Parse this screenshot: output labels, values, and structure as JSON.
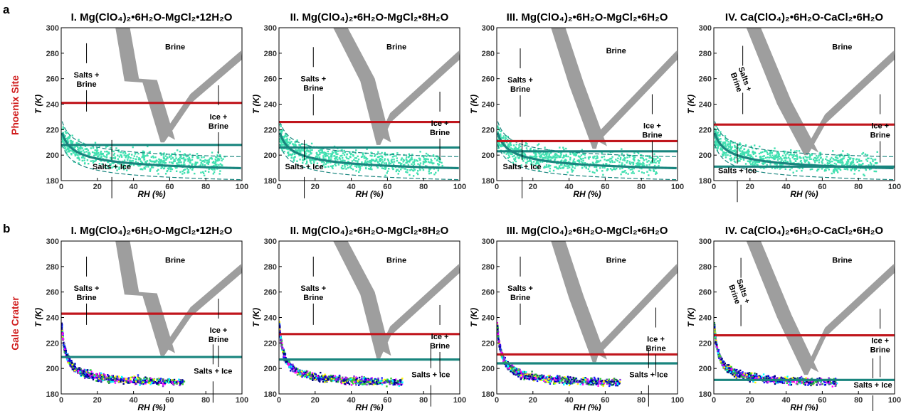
{
  "panel_labels": [
    "a",
    "b"
  ],
  "row_labels": [
    "Phoenix Site",
    "Gale Crater"
  ],
  "colors": {
    "brine_fill": "#9e9e9e",
    "red_line": "#c0161d",
    "teal_line": "#19857e",
    "mint_points": "#40e0b0",
    "row_label": "#d01c1c"
  },
  "chart_data": [
    {
      "type": "line",
      "row": "a",
      "site": "Phoenix Site",
      "title": "I. Mg(ClO₄)₂•6H₂O-MgCl₂•12H₂O",
      "xlabel": "RH (%)",
      "ylabel": "T (K)",
      "xlim": [
        0,
        100
      ],
      "ylim": [
        180,
        300
      ],
      "xticks": [
        "0",
        "20",
        "40",
        "60",
        "80",
        "100"
      ],
      "yticks": [
        "180",
        "200",
        "220",
        "240",
        "260",
        "280",
        "300"
      ],
      "eutonic_rh": 55,
      "eutonic_t": 210,
      "deliq_left": [
        [
          30,
          300
        ],
        [
          35,
          258
        ],
        [
          45,
          257
        ],
        [
          55,
          210
        ]
      ],
      "deliq_right": [
        [
          57,
          210
        ],
        [
          72,
          241
        ],
        [
          100,
          275
        ]
      ],
      "red_line_T": 241,
      "teal_line_T": 208,
      "labels": [
        {
          "text": "Brine",
          "x": 63,
          "y": 283
        },
        {
          "text": "Salts +\nBrine",
          "x": 14,
          "y": 261
        },
        {
          "text": "Ice +\nBrine",
          "x": 87,
          "y": 228
        },
        {
          "text": "Salts + Ice",
          "x": 28,
          "y": 189
        }
      ]
    },
    {
      "type": "line",
      "row": "a",
      "site": "Phoenix Site",
      "title": "II. Mg(ClO₄)₂•6H₂O-MgCl₂•8H₂O",
      "xlabel": "RH (%)",
      "ylabel": "T (K)",
      "xlim": [
        0,
        100
      ],
      "ylim": [
        180,
        300
      ],
      "xticks": [
        "0",
        "20",
        "40",
        "60",
        "80",
        "100"
      ],
      "yticks": [
        "180",
        "200",
        "220",
        "240",
        "260",
        "280",
        "300"
      ],
      "eutonic_rh": 54,
      "eutonic_t": 208,
      "deliq_left": [
        [
          30,
          300
        ],
        [
          45,
          258
        ],
        [
          54,
          208
        ]
      ],
      "deliq_right": [
        [
          56,
          208
        ],
        [
          62,
          226
        ],
        [
          100,
          275
        ]
      ],
      "red_line_T": 226,
      "teal_line_T": 206,
      "labels": [
        {
          "text": "Brine",
          "x": 65,
          "y": 283
        },
        {
          "text": "Salts +\nBrine",
          "x": 19,
          "y": 258
        },
        {
          "text": "Ice +\nBrine",
          "x": 89,
          "y": 223
        },
        {
          "text": "Salts + Ice",
          "x": 14,
          "y": 189
        }
      ]
    },
    {
      "type": "line",
      "row": "a",
      "site": "Phoenix Site",
      "title": "III. Mg(ClO₄)₂•6H₂O-MgCl₂•6H₂O",
      "xlabel": "RH (%)",
      "ylabel": "T (K)",
      "xlim": [
        0,
        100
      ],
      "ylim": [
        180,
        300
      ],
      "xticks": [
        "0",
        "20",
        "40",
        "60",
        "80",
        "100"
      ],
      "yticks": [
        "180",
        "200",
        "220",
        "240",
        "260",
        "280",
        "300"
      ],
      "eutonic_rh": 53,
      "eutonic_t": 205,
      "deliq_left": [
        [
          30,
          300
        ],
        [
          40,
          255
        ],
        [
          53,
          205
        ]
      ],
      "deliq_right": [
        [
          55,
          205
        ],
        [
          56,
          210
        ],
        [
          100,
          275
        ]
      ],
      "red_line_T": 211,
      "teal_line_T": 203,
      "labels": [
        {
          "text": "Brine",
          "x": 66,
          "y": 280
        },
        {
          "text": "Salts +\nBrine",
          "x": 13,
          "y": 257
        },
        {
          "text": "Ice +\nBrine",
          "x": 86,
          "y": 221
        },
        {
          "text": "Salts + Ice",
          "x": 14,
          "y": 189
        }
      ]
    },
    {
      "type": "line",
      "row": "a",
      "site": "Phoenix Site",
      "title": "IV. Ca(ClO₄)₂•6H₂O-CaCl₂•6H₂O",
      "xlabel": "RH (%)",
      "ylabel": "T (K)",
      "xlim": [
        0,
        100
      ],
      "ylim": [
        180,
        300
      ],
      "xticks": [
        "0",
        "20",
        "40",
        "60",
        "80",
        "100"
      ],
      "yticks": [
        "180",
        "200",
        "220",
        "240",
        "260",
        "280",
        "300"
      ],
      "eutonic_rh": 50,
      "eutonic_t": 200,
      "deliq_left": [
        [
          18,
          300
        ],
        [
          35,
          240
        ],
        [
          50,
          200
        ]
      ],
      "deliq_right": [
        [
          52,
          200
        ],
        [
          62,
          225
        ],
        [
          100,
          275
        ]
      ],
      "red_line_T": 224,
      "teal_line_T": 191,
      "labels": [
        {
          "text": "Brine",
          "x": 71,
          "y": 283
        },
        {
          "text": "Salts +\nBrine",
          "x": 16,
          "y": 259,
          "rotate": 70
        },
        {
          "text": "Ice +\nBrine",
          "x": 92,
          "y": 221
        },
        {
          "text": "Salts + Ice",
          "x": 13,
          "y": 186
        }
      ]
    },
    {
      "type": "scatter",
      "row": "b",
      "site": "Gale Crater",
      "title": "I. Mg(ClO₄)₂•6H₂O-MgCl₂•12H₂O",
      "xlabel": "RH (%)",
      "ylabel": "T (K)",
      "xlim": [
        0,
        100
      ],
      "ylim": [
        180,
        300
      ],
      "xticks": [
        "0",
        "20",
        "40",
        "60",
        "80",
        "100"
      ],
      "yticks": [
        "180",
        "200",
        "220",
        "240",
        "260",
        "280",
        "300"
      ],
      "eutonic_rh": 55,
      "eutonic_t": 210,
      "deliq_left": [
        [
          30,
          300
        ],
        [
          35,
          258
        ],
        [
          45,
          257
        ],
        [
          55,
          210
        ]
      ],
      "deliq_right": [
        [
          57,
          210
        ],
        [
          72,
          241
        ],
        [
          100,
          275
        ]
      ],
      "red_line_T": 243,
      "teal_line_T": 209,
      "labels": [
        {
          "text": "Brine",
          "x": 63,
          "y": 283
        },
        {
          "text": "Salts +\nBrine",
          "x": 14,
          "y": 261
        },
        {
          "text": "Ice +\nBrine",
          "x": 87,
          "y": 228
        },
        {
          "text": "Salts + Ice",
          "x": 84,
          "y": 196
        }
      ]
    },
    {
      "type": "scatter",
      "row": "b",
      "site": "Gale Crater",
      "title": "II. Mg(ClO₄)₂•6H₂O-MgCl₂•8H₂O",
      "xlabel": "RH (%)",
      "ylabel": "T (K)",
      "xlim": [
        0,
        100
      ],
      "ylim": [
        180,
        300
      ],
      "xticks": [
        "0",
        "20",
        "40",
        "60",
        "80",
        "100"
      ],
      "yticks": [
        "180",
        "200",
        "220",
        "240",
        "260",
        "280",
        "300"
      ],
      "eutonic_rh": 54,
      "eutonic_t": 208,
      "deliq_left": [
        [
          30,
          300
        ],
        [
          45,
          258
        ],
        [
          54,
          208
        ]
      ],
      "deliq_right": [
        [
          56,
          208
        ],
        [
          62,
          226
        ],
        [
          100,
          275
        ]
      ],
      "red_line_T": 227,
      "teal_line_T": 207,
      "labels": [
        {
          "text": "Brine",
          "x": 65,
          "y": 283
        },
        {
          "text": "Salts +\nBrine",
          "x": 19,
          "y": 261
        },
        {
          "text": "Ice +\nBrine",
          "x": 89,
          "y": 223
        },
        {
          "text": "Salts + Ice",
          "x": 84,
          "y": 193
        }
      ]
    },
    {
      "type": "scatter",
      "row": "b",
      "site": "Gale Crater",
      "title": "III. Mg(ClO₄)₂•6H₂O-MgCl₂•6H₂O",
      "xlabel": "RH (%)",
      "ylabel": "T (K)",
      "xlim": [
        0,
        100
      ],
      "ylim": [
        180,
        300
      ],
      "xticks": [
        "0",
        "20",
        "40",
        "60",
        "80",
        "100"
      ],
      "yticks": [
        "180",
        "200",
        "220",
        "240",
        "260",
        "280",
        "300"
      ],
      "eutonic_rh": 53,
      "eutonic_t": 205,
      "deliq_left": [
        [
          30,
          300
        ],
        [
          40,
          255
        ],
        [
          53,
          205
        ]
      ],
      "deliq_right": [
        [
          55,
          205
        ],
        [
          56,
          210
        ],
        [
          100,
          275
        ]
      ],
      "red_line_T": 211,
      "teal_line_T": 204,
      "labels": [
        {
          "text": "Brine",
          "x": 66,
          "y": 283
        },
        {
          "text": "Salts +\nBrine",
          "x": 13,
          "y": 261
        },
        {
          "text": "Ice +\nBrine",
          "x": 88,
          "y": 221
        },
        {
          "text": "Salts + Ice",
          "x": 84,
          "y": 193
        }
      ]
    },
    {
      "type": "scatter",
      "row": "b",
      "site": "Gale Crater",
      "title": "IV. Ca(ClO₄)₂•6H₂O-CaCl₂•6H₂O",
      "xlabel": "RH (%)",
      "ylabel": "T (K)",
      "xlim": [
        0,
        100
      ],
      "ylim": [
        180,
        300
      ],
      "xticks": [
        "0",
        "20",
        "40",
        "60",
        "80",
        "100"
      ],
      "yticks": [
        "180",
        "200",
        "220",
        "240",
        "260",
        "280",
        "300"
      ],
      "eutonic_rh": 50,
      "eutonic_t": 195,
      "deliq_left": [
        [
          18,
          300
        ],
        [
          35,
          240
        ],
        [
          50,
          195
        ]
      ],
      "deliq_right": [
        [
          52,
          195
        ],
        [
          62,
          225
        ],
        [
          100,
          275
        ]
      ],
      "red_line_T": 226,
      "teal_line_T": 191,
      "labels": [
        {
          "text": "Brine",
          "x": 71,
          "y": 283
        },
        {
          "text": "Salts +\nBrine",
          "x": 15,
          "y": 260,
          "rotate": 70
        },
        {
          "text": "Ice +\nBrine",
          "x": 92,
          "y": 220
        },
        {
          "text": "Salts + Ice",
          "x": 88,
          "y": 185
        }
      ]
    }
  ]
}
